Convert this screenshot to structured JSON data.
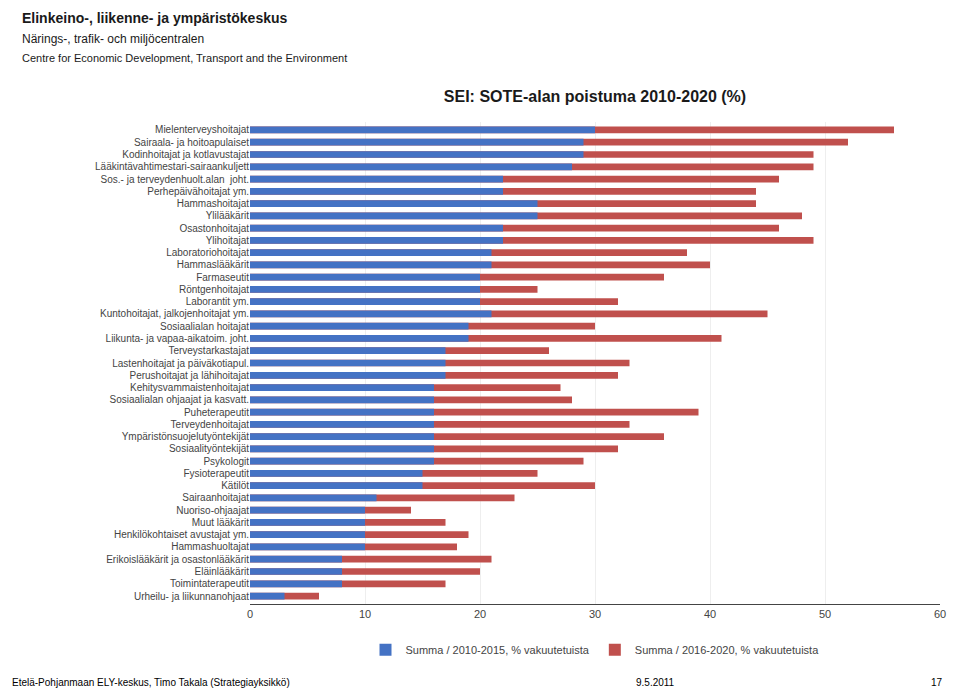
{
  "chart_data": {
    "type": "bar",
    "orientation": "horizontal",
    "stacked": false,
    "title": "SEI: SOTE-alan poistuma 2010-2020 (%)",
    "categories": [
      "Mielenterveyshoitajat",
      "Sairaala- ja hoitoapulaiset",
      "Kodinhoitajat ja kotlavustajat",
      "Lääkintävahtimestari-sairaankuljett",
      "Sos.- ja terveydenhuolt.alan  joht.",
      "Perhepäivähoitajat ym.",
      "Hammashoitajat",
      "Ylilääkärit",
      "Osastonhoitajat",
      "Ylihoitajat",
      "Laboratoriohoitajat",
      "Hammaslääkärit",
      "Farmaseutit",
      "Röntgenhoitajat",
      "Laborantit ym.",
      "Kuntohoitajat, jalkojenhoitajat ym.",
      "Sosiaalialan hoitajat",
      "Liikunta- ja vapaa-aikatoim. joht.",
      "Terveystarkastajat",
      "Lastenhoitajat ja päiväkotiapul.",
      "Perushoitajat ja lähihoitajat",
      "Kehitysvammaistenhoitajat",
      "Sosiaalialan ohjaajat ja kasvatt.",
      "Puheterapeutit",
      "Terveydenhoitajat",
      "Ympäristönsuojelutyöntekijät",
      "Sosiaalityöntekijät",
      "Psykologit",
      "Fysioterapeutit",
      "Kätilöt",
      "Sairaanhoitajat",
      "Nuoriso-ohjaajat",
      "Muut lääkärit",
      "Henkilökohtaiset avustajat ym.",
      "Hammashuoltajat",
      "Erikoislääkärit ja osastonlääkärit",
      "Eläinlääkärit",
      "Toimintaterapeutit",
      "Urheilu- ja liikunnanohjaat"
    ],
    "series": [
      {
        "name": "Summa / 2010-2015, % vakuutetuista",
        "color": "#4472C4",
        "values": [
          30,
          29,
          29,
          28,
          22,
          22,
          25,
          25,
          22,
          22,
          21,
          21,
          20,
          20,
          20,
          21,
          19,
          19,
          17,
          17,
          17,
          16,
          16,
          16,
          16,
          16,
          16,
          16,
          15,
          15,
          11,
          10,
          10,
          10,
          10,
          8,
          8,
          8,
          3
        ]
      },
      {
        "name": "Summa / 2016-2020, % vakuutetuista",
        "color": "#C0504D",
        "values": [
          56,
          52,
          49,
          49,
          46,
          44,
          44,
          48,
          46,
          49,
          38,
          40,
          36,
          25,
          32,
          45,
          30,
          41,
          26,
          33,
          32,
          27,
          28,
          39,
          33,
          36,
          32,
          29,
          25,
          30,
          23,
          14,
          17,
          19,
          18,
          21,
          20,
          17,
          6
        ]
      }
    ],
    "xlim": [
      0,
      60
    ],
    "xticks": [
      0,
      10,
      20,
      30,
      40,
      50,
      60
    ],
    "grid": true,
    "legend": "bottom",
    "annotations": [
      "Elinkeino-, liikenne- ja ympäristökeskus",
      "Närings-, trafik- och miljöcentralen",
      "Centre for Economic Development, Transport and the Environment",
      "Etelä-Pohjanmaan ELY-keskus, Timo Takala (Strategiayksikkö)",
      "9.5.2011",
      "17"
    ]
  }
}
